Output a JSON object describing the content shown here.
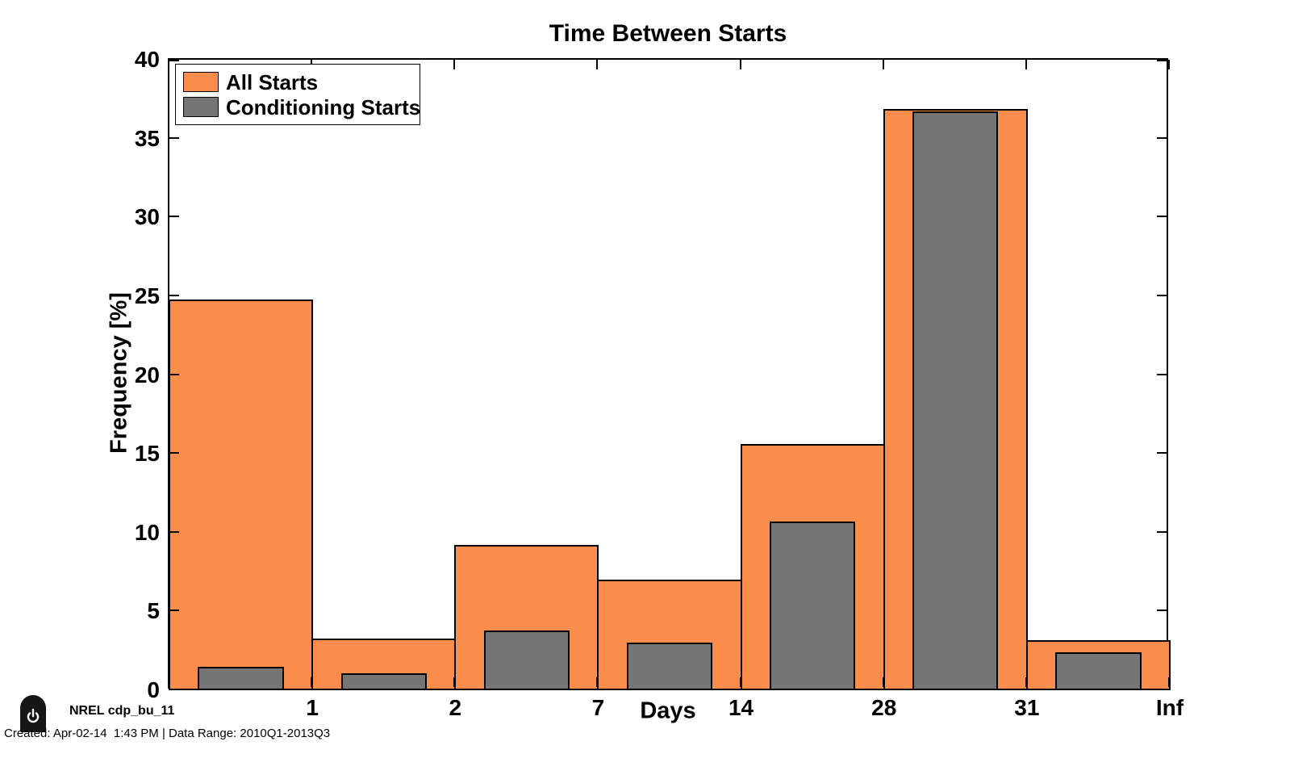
{
  "title": "Time Between Starts",
  "axes": {
    "xlabel": "Days",
    "ylabel": "Frequency [%]"
  },
  "legend": {
    "items": [
      {
        "label": "All Starts",
        "color": "#FA8D4B"
      },
      {
        "label": "Conditioning Starts",
        "color": "#757575"
      }
    ]
  },
  "footer": {
    "brand": "NREL cdp_bu_11",
    "created": "Created: Apr-02-14  1:43 PM | Data Range: 2010Q1-2013Q3",
    "icon": "power-icon"
  },
  "colors": {
    "all_starts": "#FA8D4B",
    "conditioning_starts": "#757575",
    "bar_edge": "#000000",
    "axis": "#000000",
    "background": "#FFFFFF"
  },
  "chart_data": {
    "type": "bar",
    "title": "Time Between Starts",
    "xlabel": "Days",
    "ylabel": "Frequency [%]",
    "categories": [
      "1",
      "2",
      "7",
      "14",
      "28",
      "31",
      "Inf"
    ],
    "series": [
      {
        "name": "All Starts",
        "color": "#FA8D4B",
        "values": [
          24.8,
          3.3,
          9.2,
          7.0,
          15.6,
          36.9,
          3.2
        ]
      },
      {
        "name": "Conditioning Starts",
        "color": "#757575",
        "values": [
          1.5,
          1.1,
          3.8,
          3.0,
          10.7,
          36.7,
          2.4
        ]
      }
    ],
    "ylim": [
      0,
      40
    ],
    "yticks": [
      0,
      5,
      10,
      15,
      20,
      25,
      30,
      35,
      40
    ],
    "grid": false,
    "legend_position": "top-left",
    "layout_notes": "histogram-style: x tick labels mark the right edge of each of 7 equal-width bins; gray series bars are inset (60% bin width) inside orange bars"
  }
}
